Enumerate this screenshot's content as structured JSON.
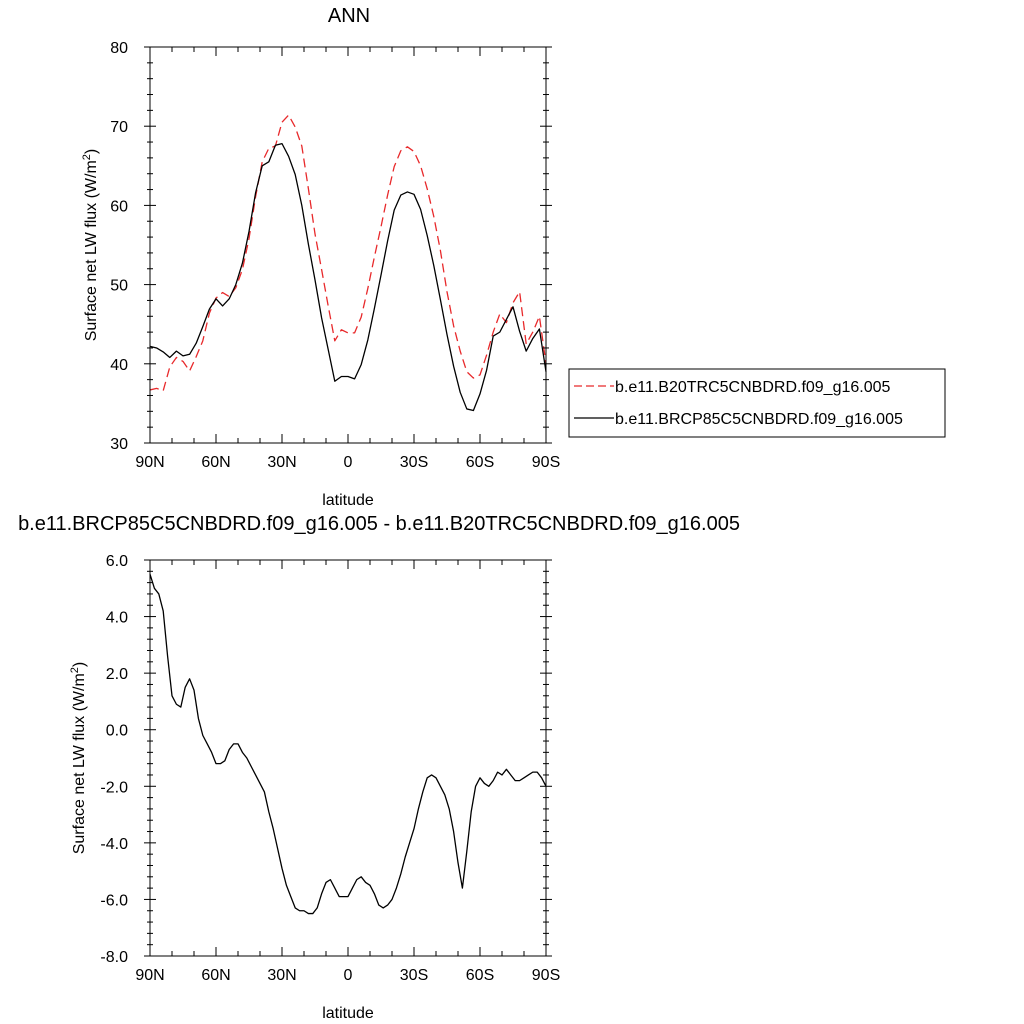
{
  "chart_data": [
    {
      "type": "line",
      "title": "ANN",
      "xlabel": "latitude",
      "ylabel": "Surface net LW flux (W/m",
      "ylabel_sup": "2",
      "ylabel_close": ")",
      "x_tick_values": [
        90,
        60,
        30,
        0,
        -30,
        -60,
        -90
      ],
      "x_tick_labels": [
        "90N",
        "60N",
        "30N",
        "0",
        "30S",
        "60S",
        "90S"
      ],
      "xlim": [
        90,
        -90
      ],
      "ylim": [
        30,
        80
      ],
      "y_tick_values": [
        30,
        40,
        50,
        60,
        70,
        80
      ],
      "y_tick_labels": [
        "30",
        "40",
        "50",
        "60",
        "70",
        "80"
      ],
      "grid": false,
      "legend_position": "right",
      "series": [
        {
          "name": "b.e11.B20TRC5CNBDRD.f09_g16.005",
          "color": "#e8292b",
          "dash": "dashed",
          "x": [
            90,
            87,
            84,
            81,
            78,
            75,
            72,
            69,
            66,
            63,
            60,
            57,
            54,
            51,
            48,
            45,
            42,
            39,
            36,
            33,
            30,
            27,
            24,
            21,
            18,
            15,
            12,
            9,
            6,
            3,
            0,
            -3,
            -6,
            -9,
            -12,
            -15,
            -18,
            -21,
            -24,
            -27,
            -30,
            -33,
            -36,
            -39,
            -42,
            -45,
            -48,
            -51,
            -54,
            -57,
            -60,
            -63,
            -66,
            -69,
            -72,
            -75,
            -78,
            -81,
            -84,
            -87,
            -90
          ],
          "values": [
            36.7,
            36.9,
            36.6,
            39.6,
            40.8,
            40.3,
            39.1,
            40.9,
            42.9,
            46.4,
            48.3,
            49.0,
            48.5,
            49.6,
            51.9,
            55.8,
            61.1,
            65.5,
            67.2,
            67.5,
            70.5,
            71.4,
            69.9,
            67.5,
            62.1,
            56.4,
            51.9,
            47.3,
            42.9,
            44.3,
            43.9,
            43.9,
            45.9,
            49.5,
            53.5,
            57.3,
            61.3,
            64.9,
            66.9,
            67.4,
            66.8,
            65.0,
            62.1,
            58.6,
            54.3,
            49.1,
            44.8,
            41.6,
            39.0,
            38.2,
            38.6,
            41.1,
            44.0,
            46.3,
            45.2,
            47.7,
            49.1,
            42.5,
            44.0,
            46.0,
            40.0
          ]
        },
        {
          "name": "b.e11.BRCP85C5CNBDRD.f09_g16.005",
          "color": "#000000",
          "dash": "solid",
          "x": [
            90,
            87,
            84,
            81,
            78,
            75,
            72,
            69,
            66,
            63,
            60,
            57,
            54,
            51,
            48,
            45,
            42,
            39,
            36,
            33,
            30,
            27,
            24,
            21,
            18,
            15,
            12,
            9,
            6,
            3,
            0,
            -3,
            -6,
            -9,
            -12,
            -15,
            -18,
            -21,
            -24,
            -27,
            -30,
            -33,
            -36,
            -39,
            -42,
            -45,
            -48,
            -51,
            -54,
            -57,
            -60,
            -63,
            -66,
            -69,
            -72,
            -75,
            -78,
            -81,
            -84,
            -87,
            -90
          ],
          "values": [
            42.2,
            42.0,
            41.5,
            40.8,
            41.6,
            41.0,
            41.2,
            42.6,
            44.7,
            46.9,
            48.2,
            47.3,
            48.2,
            50.0,
            52.7,
            56.7,
            61.6,
            65.0,
            65.5,
            67.6,
            67.8,
            66.2,
            63.9,
            60.0,
            55.1,
            50.6,
            45.8,
            41.8,
            37.8,
            38.4,
            38.4,
            38.1,
            39.9,
            43.0,
            47.0,
            51.2,
            55.5,
            59.4,
            61.3,
            61.7,
            61.4,
            59.5,
            56.2,
            52.4,
            48.1,
            43.7,
            39.7,
            36.4,
            34.3,
            34.1,
            36.2,
            39.2,
            43.5,
            44.0,
            45.6,
            47.2,
            44.1,
            41.6,
            43.2,
            44.4,
            39.0
          ]
        }
      ]
    },
    {
      "type": "line",
      "title": "b.e11.BRCP85C5CNBDRD.f09_g16.005 - b.e11.B20TRC5CNBDRD.f09_g16.005",
      "xlabel": "latitude",
      "ylabel": "Surface net LW flux (W/m",
      "ylabel_sup": "2",
      "ylabel_close": ")",
      "x_tick_values": [
        90,
        60,
        30,
        0,
        -30,
        -60,
        -90
      ],
      "x_tick_labels": [
        "90N",
        "60N",
        "30N",
        "0",
        "30S",
        "60S",
        "90S"
      ],
      "xlim": [
        90,
        -90
      ],
      "ylim": [
        -8,
        6
      ],
      "y_tick_values": [
        -8,
        -6,
        -4,
        -2,
        0,
        2,
        4,
        6
      ],
      "y_tick_labels": [
        "-8.0",
        "-6.0",
        "-4.0",
        "-2.0",
        "0.0",
        "2.0",
        "4.0",
        "6.0"
      ],
      "grid": false,
      "series": [
        {
          "color": "#000000",
          "dash": "solid",
          "x": [
            90,
            88,
            86,
            84,
            82,
            80,
            78,
            76,
            74,
            72,
            70,
            68,
            66,
            64,
            62,
            60,
            58,
            56,
            54,
            52,
            50,
            48,
            46,
            44,
            42,
            40,
            38,
            36,
            34,
            32,
            30,
            28,
            26,
            24,
            22,
            20,
            18,
            16,
            14,
            12,
            10,
            8,
            6,
            4,
            2,
            0,
            -2,
            -4,
            -6,
            -8,
            -10,
            -12,
            -14,
            -16,
            -18,
            -20,
            -22,
            -24,
            -26,
            -28,
            -30,
            -32,
            -34,
            -36,
            -38,
            -40,
            -42,
            -44,
            -46,
            -48,
            -50,
            -52,
            -54,
            -56,
            -58,
            -60,
            -62,
            -64,
            -66,
            -68,
            -70,
            -72,
            -74,
            -76,
            -78,
            -80,
            -82,
            -84,
            -86,
            -88,
            -90
          ],
          "values": [
            5.5,
            5.0,
            4.8,
            4.2,
            2.6,
            1.2,
            0.9,
            0.8,
            1.5,
            1.8,
            1.4,
            0.4,
            -0.2,
            -0.5,
            -0.8,
            -1.2,
            -1.2,
            -1.1,
            -0.7,
            -0.5,
            -0.5,
            -0.8,
            -1.0,
            -1.3,
            -1.6,
            -1.9,
            -2.2,
            -2.9,
            -3.5,
            -4.2,
            -4.9,
            -5.5,
            -5.9,
            -6.3,
            -6.4,
            -6.4,
            -6.5,
            -6.5,
            -6.3,
            -5.8,
            -5.4,
            -5.3,
            -5.6,
            -5.9,
            -5.9,
            -5.9,
            -5.6,
            -5.3,
            -5.2,
            -5.4,
            -5.5,
            -5.8,
            -6.2,
            -6.3,
            -6.2,
            -6.0,
            -5.6,
            -5.1,
            -4.5,
            -4.0,
            -3.5,
            -2.8,
            -2.2,
            -1.7,
            -1.6,
            -1.7,
            -2.0,
            -2.3,
            -2.8,
            -3.6,
            -4.7,
            -5.6,
            -4.3,
            -2.9,
            -2.0,
            -1.7,
            -1.9,
            -2.0,
            -1.8,
            -1.5,
            -1.6,
            -1.4,
            -1.6,
            -1.8,
            -1.8,
            -1.7,
            -1.6,
            -1.5,
            -1.5,
            -1.7,
            -2.0
          ]
        }
      ]
    }
  ]
}
